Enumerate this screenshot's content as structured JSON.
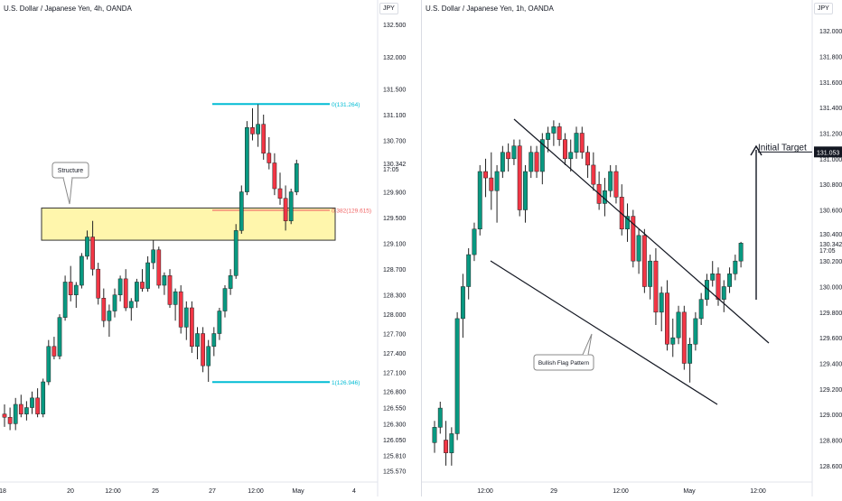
{
  "panels": [
    {
      "title": "U.S. Dollar / Japanese Yen, 4h, OANDA",
      "currency_badge": "JPY",
      "price_labels": [
        "132.500",
        "132.000",
        "131.500",
        "131.100",
        "130.700",
        "130.342",
        "17:05",
        "129.900",
        "129.500",
        "129.100",
        "128.700",
        "128.300",
        "128.000",
        "127.700",
        "127.400",
        "127.100",
        "126.800",
        "126.550",
        "126.300",
        "126.050",
        "125.810",
        "125.570"
      ],
      "time_labels": [
        "18",
        "20",
        "12:00",
        "25",
        "27",
        "12:00",
        "May",
        "4"
      ],
      "fib_levels": [
        {
          "label": "0(131.264)",
          "color": "#00bcd4"
        },
        {
          "label": "0.382(129.615)",
          "color": "#f06262"
        },
        {
          "label": "1(126.946)",
          "color": "#00bcd4"
        }
      ],
      "annotation": "Structure",
      "zone_color": "#fff59d"
    },
    {
      "title": "U.S. Dollar / Japanese Yen, 1h, OANDA",
      "currency_badge": "JPY",
      "price_labels": [
        "132.000",
        "131.800",
        "131.600",
        "131.400",
        "131.200",
        "131.000",
        "130.800",
        "130.600",
        "130.400",
        "130.342",
        "17:05",
        "130.200",
        "130.000",
        "129.800",
        "129.600",
        "129.400",
        "129.200",
        "129.000",
        "128.800",
        "128.600"
      ],
      "highlight_price": "131.053",
      "time_labels": [
        "12:00",
        "29",
        "12:00",
        "May",
        "12:00"
      ],
      "annotation": "Bullish Flag Pattern",
      "target_label": "Initial Target"
    }
  ],
  "chart_data": [
    {
      "type": "candlestick",
      "title": "U.S. Dollar / Japanese Yen, 4h, OANDA",
      "series": [
        {
          "name": "USDJPY",
          "ohlc": [
            [
              126.45,
              126.6,
              126.25,
              126.4
            ],
            [
              126.4,
              126.55,
              126.2,
              126.3
            ],
            [
              126.3,
              126.7,
              126.2,
              126.6
            ],
            [
              126.6,
              126.75,
              126.4,
              126.45
            ],
            [
              126.45,
              126.65,
              126.35,
              126.55
            ],
            [
              126.55,
              126.8,
              126.45,
              126.7
            ],
            [
              126.7,
              126.85,
              126.4,
              126.45
            ],
            [
              126.45,
              127.0,
              126.4,
              126.95
            ],
            [
              126.95,
              127.6,
              126.9,
              127.5
            ],
            [
              127.5,
              127.65,
              127.3,
              127.35
            ],
            [
              127.35,
              128.0,
              127.3,
              127.95
            ],
            [
              127.95,
              128.6,
              127.9,
              128.5
            ],
            [
              128.5,
              128.75,
              128.2,
              128.3
            ],
            [
              128.3,
              128.5,
              128.1,
              128.45
            ],
            [
              128.45,
              128.95,
              128.4,
              128.9
            ],
            [
              128.9,
              129.3,
              128.85,
              129.2
            ],
            [
              129.2,
              129.45,
              128.6,
              128.7
            ],
            [
              128.7,
              128.8,
              128.15,
              128.25
            ],
            [
              128.25,
              128.4,
              127.8,
              127.9
            ],
            [
              127.9,
              128.15,
              127.65,
              128.05
            ],
            [
              128.05,
              128.4,
              127.95,
              128.3
            ],
            [
              128.3,
              128.6,
              128.2,
              128.55
            ],
            [
              128.55,
              128.7,
              128.05,
              128.1
            ],
            [
              128.1,
              128.25,
              127.9,
              128.2
            ],
            [
              128.2,
              128.55,
              128.1,
              128.5
            ],
            [
              128.5,
              128.7,
              128.35,
              128.4
            ],
            [
              128.4,
              128.9,
              128.35,
              128.8
            ],
            [
              128.8,
              129.15,
              128.7,
              129.0
            ],
            [
              129.0,
              129.05,
              128.4,
              128.45
            ],
            [
              128.45,
              128.65,
              128.3,
              128.6
            ],
            [
              128.6,
              128.7,
              128.1,
              128.15
            ],
            [
              128.15,
              128.4,
              127.9,
              128.35
            ],
            [
              128.35,
              128.45,
              127.7,
              127.8
            ],
            [
              127.8,
              128.2,
              127.6,
              128.1
            ],
            [
              128.1,
              128.2,
              127.4,
              127.5
            ],
            [
              127.5,
              127.8,
              127.3,
              127.7
            ],
            [
              127.7,
              127.8,
              127.1,
              127.2
            ],
            [
              127.2,
              127.6,
              126.95,
              127.5
            ],
            [
              127.5,
              127.8,
              127.35,
              127.7
            ],
            [
              127.7,
              128.1,
              127.6,
              128.05
            ],
            [
              128.05,
              128.45,
              127.95,
              128.4
            ],
            [
              128.4,
              128.7,
              128.3,
              128.6
            ],
            [
              128.6,
              129.4,
              128.55,
              129.3
            ],
            [
              129.3,
              130.0,
              129.25,
              129.9
            ],
            [
              129.9,
              131.0,
              129.85,
              130.9
            ],
            [
              130.9,
              131.2,
              130.7,
              130.8
            ],
            [
              130.8,
              131.26,
              130.6,
              130.95
            ],
            [
              130.95,
              131.1,
              130.4,
              130.5
            ],
            [
              130.5,
              130.75,
              130.25,
              130.35
            ],
            [
              130.35,
              130.5,
              129.85,
              129.95
            ],
            [
              129.95,
              130.2,
              129.7,
              129.8
            ],
            [
              129.8,
              130.0,
              129.3,
              129.45
            ],
            [
              129.45,
              129.95,
              129.4,
              129.9
            ],
            [
              129.9,
              130.4,
              129.85,
              130.34
            ]
          ]
        }
      ],
      "fib_levels": [
        {
          "ratio": 0,
          "price": 131.264
        },
        {
          "ratio": 0.382,
          "price": 129.615
        },
        {
          "ratio": 1,
          "price": 126.946
        }
      ],
      "zone": {
        "low": 129.15,
        "high": 129.65
      },
      "ylim": [
        125.45,
        132.6
      ],
      "grid": false
    },
    {
      "type": "candlestick",
      "title": "U.S. Dollar / Japanese Yen, 1h, OANDA",
      "series": [
        {
          "name": "USDJPY",
          "ohlc": [
            [
              128.78,
              128.95,
              128.7,
              128.9
            ],
            [
              128.9,
              129.1,
              128.85,
              129.05
            ],
            [
              128.8,
              128.95,
              128.6,
              128.7
            ],
            [
              128.7,
              128.9,
              128.6,
              128.85
            ],
            [
              128.85,
              129.8,
              128.8,
              129.75
            ],
            [
              129.75,
              130.1,
              129.6,
              130.0
            ],
            [
              130.0,
              130.3,
              129.9,
              130.25
            ],
            [
              130.25,
              130.5,
              130.2,
              130.45
            ],
            [
              130.45,
              130.95,
              130.4,
              130.9
            ],
            [
              130.9,
              131.0,
              130.7,
              130.85
            ],
            [
              130.85,
              131.05,
              130.6,
              130.75
            ],
            [
              130.75,
              130.95,
              130.5,
              130.9
            ],
            [
              130.9,
              131.1,
              130.85,
              131.05
            ],
            [
              131.05,
              131.12,
              130.9,
              131.0
            ],
            [
              131.0,
              131.15,
              130.95,
              131.1
            ],
            [
              131.1,
              131.15,
              130.55,
              130.6
            ],
            [
              130.6,
              130.95,
              130.5,
              130.9
            ],
            [
              130.9,
              131.1,
              130.85,
              131.05
            ],
            [
              131.05,
              131.1,
              130.85,
              130.9
            ],
            [
              130.9,
              131.2,
              130.8,
              131.15
            ],
            [
              131.15,
              131.25,
              131.05,
              131.2
            ],
            [
              131.2,
              131.3,
              131.1,
              131.25
            ],
            [
              131.25,
              131.28,
              131.1,
              131.15
            ],
            [
              131.15,
              131.2,
              130.95,
              131.0
            ],
            [
              131.0,
              131.15,
              130.9,
              131.05
            ],
            [
              131.05,
              131.25,
              131.0,
              131.2
            ],
            [
              131.2,
              131.25,
              131.0,
              131.05
            ],
            [
              131.05,
              131.1,
              130.85,
              130.95
            ],
            [
              130.95,
              131.05,
              130.75,
              130.8
            ],
            [
              130.8,
              130.9,
              130.6,
              130.65
            ],
            [
              130.65,
              130.85,
              130.55,
              130.75
            ],
            [
              130.75,
              130.95,
              130.7,
              130.9
            ],
            [
              130.9,
              130.95,
              130.65,
              130.7
            ],
            [
              130.7,
              130.8,
              130.4,
              130.45
            ],
            [
              130.45,
              130.65,
              130.35,
              130.55
            ],
            [
              130.55,
              130.6,
              130.15,
              130.2
            ],
            [
              130.2,
              130.45,
              130.1,
              130.4
            ],
            [
              130.4,
              130.45,
              129.95,
              130.0
            ],
            [
              130.0,
              130.25,
              129.9,
              130.2
            ],
            [
              130.2,
              130.3,
              129.7,
              129.8
            ],
            [
              129.8,
              130.0,
              129.65,
              129.95
            ],
            [
              129.95,
              130.05,
              129.5,
              129.55
            ],
            [
              129.55,
              129.75,
              129.45,
              129.6
            ],
            [
              129.6,
              129.85,
              129.55,
              129.8
            ],
            [
              129.8,
              129.85,
              129.35,
              129.4
            ],
            [
              129.4,
              129.6,
              129.25,
              129.55
            ],
            [
              129.55,
              129.8,
              129.5,
              129.75
            ],
            [
              129.75,
              129.95,
              129.7,
              129.9
            ],
            [
              129.9,
              130.1,
              129.85,
              130.05
            ],
            [
              130.05,
              130.2,
              130.0,
              130.1
            ],
            [
              130.1,
              130.15,
              129.85,
              129.9
            ],
            [
              129.9,
              130.05,
              129.8,
              130.0
            ],
            [
              130.0,
              130.15,
              129.95,
              130.1
            ],
            [
              130.1,
              130.25,
              130.05,
              130.2
            ],
            [
              130.2,
              130.35,
              130.15,
              130.34
            ]
          ]
        }
      ],
      "flag_lines": [
        {
          "name": "upper",
          "from": [
            4,
            131.3
          ],
          "to": [
            49,
            129.55
          ]
        },
        {
          "name": "lower",
          "from": [
            4,
            130.25
          ],
          "to": [
            39,
            129.05
          ]
        }
      ],
      "target": {
        "price": 131.053
      },
      "ylim": [
        128.5,
        132.1
      ],
      "grid": false
    }
  ]
}
